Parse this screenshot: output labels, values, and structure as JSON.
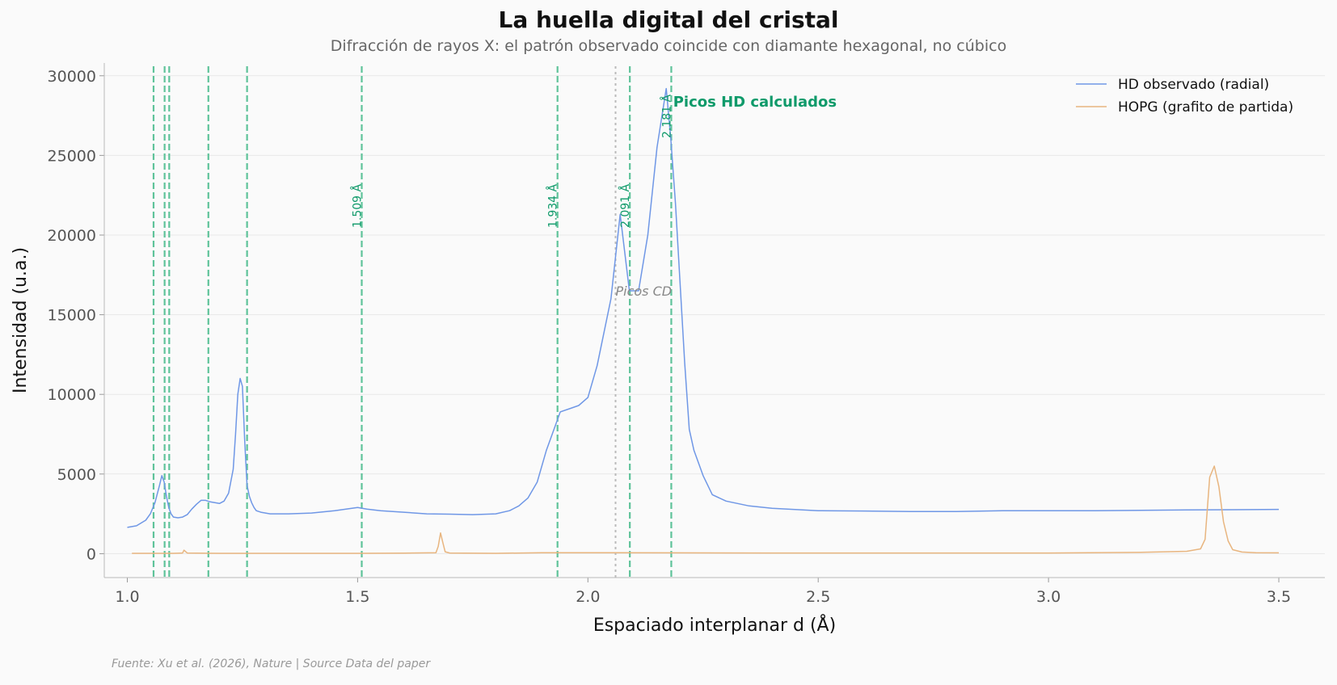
{
  "chart_data": {
    "type": "line",
    "title": "La huella digital del cristal",
    "subtitle": "Difracción de rayos X: el patrón observado coincide con diamante hexagonal, no cúbico",
    "xlabel": "Espaciado interplanar d (Å)",
    "ylabel": "Intensidad (u.a.)",
    "xlim": [
      0.95,
      3.6
    ],
    "ylim": [
      -1500,
      30800
    ],
    "xticks": [
      1.0,
      1.5,
      2.0,
      2.5,
      3.0,
      3.5
    ],
    "xtick_labels": [
      "1.0",
      "1.5",
      "2.0",
      "2.5",
      "3.0",
      "3.5"
    ],
    "yticks": [
      0,
      5000,
      10000,
      15000,
      20000,
      25000,
      30000
    ],
    "ytick_labels": [
      "0",
      "5000",
      "10000",
      "15000",
      "20000",
      "25000",
      "30000"
    ],
    "grid": "horizontal",
    "legend_position": "top-right",
    "series": [
      {
        "name": "HD observado (radial)",
        "color": "#6f97e6",
        "x": [
          1.0,
          1.02,
          1.04,
          1.05,
          1.06,
          1.07,
          1.075,
          1.08,
          1.085,
          1.09,
          1.095,
          1.1,
          1.11,
          1.12,
          1.13,
          1.14,
          1.15,
          1.16,
          1.17,
          1.18,
          1.19,
          1.2,
          1.21,
          1.22,
          1.23,
          1.235,
          1.24,
          1.245,
          1.25,
          1.255,
          1.26,
          1.265,
          1.27,
          1.275,
          1.28,
          1.29,
          1.3,
          1.31,
          1.32,
          1.33,
          1.35,
          1.4,
          1.45,
          1.5,
          1.52,
          1.55,
          1.6,
          1.65,
          1.7,
          1.75,
          1.8,
          1.83,
          1.85,
          1.87,
          1.89,
          1.91,
          1.93,
          1.94,
          1.96,
          1.98,
          2.0,
          2.02,
          2.05,
          2.07,
          2.09,
          2.11,
          2.13,
          2.15,
          2.17,
          2.18,
          2.19,
          2.2,
          2.21,
          2.22,
          2.23,
          2.25,
          2.27,
          2.3,
          2.35,
          2.4,
          2.5,
          2.6,
          2.7,
          2.8,
          2.9,
          3.0,
          3.1,
          3.2,
          3.3,
          3.4,
          3.5
        ],
        "y": [
          1650,
          1750,
          2100,
          2500,
          3200,
          4300,
          4900,
          4500,
          3600,
          2900,
          2500,
          2300,
          2250,
          2300,
          2450,
          2800,
          3100,
          3350,
          3350,
          3250,
          3200,
          3150,
          3300,
          3800,
          5300,
          7500,
          10000,
          11000,
          10500,
          7000,
          4300,
          3600,
          3200,
          2900,
          2700,
          2600,
          2550,
          2500,
          2500,
          2500,
          2500,
          2550,
          2700,
          2900,
          2800,
          2700,
          2600,
          2500,
          2480,
          2450,
          2500,
          2700,
          3000,
          3500,
          4500,
          6500,
          8100,
          8900,
          9100,
          9300,
          9800,
          11800,
          16000,
          21300,
          16500,
          16500,
          20000,
          25500,
          29200,
          26000,
          22000,
          17000,
          12000,
          7800,
          6500,
          4900,
          3700,
          3300,
          3000,
          2850,
          2700,
          2680,
          2650,
          2650,
          2700,
          2700,
          2700,
          2720,
          2750,
          2760,
          2780
        ]
      },
      {
        "name": "HOPG (grafito de partida)",
        "color": "#e8b57f",
        "x": [
          1.01,
          1.1,
          1.12,
          1.123,
          1.13,
          1.2,
          1.3,
          1.4,
          1.5,
          1.6,
          1.67,
          1.675,
          1.68,
          1.685,
          1.69,
          1.7,
          1.8,
          1.9,
          2.0,
          2.2,
          2.4,
          2.6,
          2.8,
          3.0,
          3.2,
          3.3,
          3.33,
          3.34,
          3.35,
          3.36,
          3.37,
          3.38,
          3.39,
          3.4,
          3.42,
          3.45,
          3.5
        ],
        "y": [
          20,
          20,
          40,
          220,
          40,
          20,
          20,
          20,
          20,
          30,
          60,
          450,
          1300,
          700,
          120,
          40,
          20,
          60,
          60,
          50,
          40,
          40,
          40,
          40,
          80,
          150,
          300,
          900,
          4800,
          5500,
          4200,
          2000,
          800,
          250,
          100,
          60,
          50
        ]
      }
    ],
    "vlines_hd": [
      1.057,
      1.081,
      1.091,
      1.176,
      1.26,
      1.509,
      1.934,
      2.091,
      2.181
    ],
    "peak_labels": [
      {
        "x": 1.509,
        "text": "1.509 Å"
      },
      {
        "x": 1.934,
        "text": "1.934 Å"
      },
      {
        "x": 2.091,
        "text": "2.091 Å"
      },
      {
        "x": 2.181,
        "text": "2.181 Å"
      }
    ],
    "vlines_cd": [
      2.06
    ],
    "annotations": [
      {
        "text": "Picos HD calculados",
        "x": 2.185,
        "y": 28000
      },
      {
        "text": "Picos CD",
        "x": 2.06,
        "y": 16200
      }
    ],
    "source": "Fuente: Xu et al. (2026), Nature | Source Data del paper"
  }
}
